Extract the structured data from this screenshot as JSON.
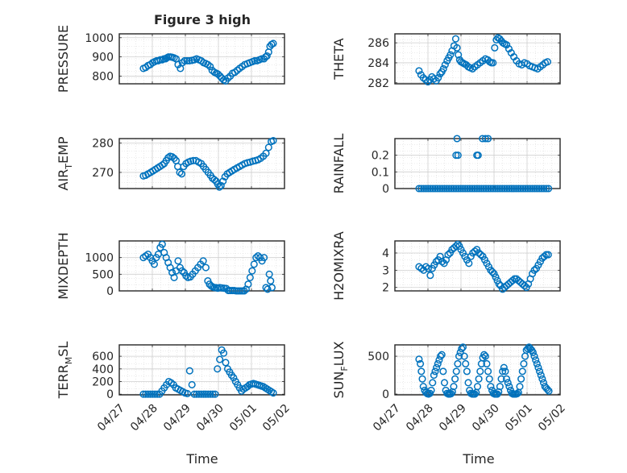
{
  "figure": {
    "title": "Figure 3 high",
    "xlabel": "Time",
    "xticks": [
      "04/27",
      "04/28",
      "04/29",
      "04/30",
      "05/01",
      "05/02"
    ]
  },
  "style": {
    "marker_color": "#0072BD",
    "axis_color": "#262626",
    "grid_color": "#d9d9d9"
  },
  "chart_data": [
    {
      "type": "scatter",
      "ylabel": "PRESSURE",
      "ylim": [
        760,
        1020
      ],
      "yticks": [
        800,
        900,
        1000
      ],
      "x": [
        27.73,
        27.8,
        27.87,
        27.94,
        28.01,
        28.07,
        28.13,
        28.18,
        28.24,
        28.3,
        28.35,
        28.4,
        28.44,
        28.49,
        28.55,
        28.6,
        28.66,
        28.72,
        28.78,
        28.85,
        28.91,
        28.98,
        29.05,
        29.12,
        29.2,
        29.27,
        29.34,
        29.41,
        29.48,
        29.55,
        29.62,
        29.68,
        29.75,
        29.81,
        29.88,
        29.94,
        29.99,
        30.05,
        30.1,
        30.16,
        30.22,
        30.29,
        30.36,
        30.43,
        30.5,
        30.57,
        30.64,
        30.72,
        30.8,
        30.88,
        30.95,
        31.03,
        31.1,
        31.17,
        31.24,
        31.31,
        31.38,
        31.43,
        31.47,
        31.52,
        31.56,
        31.61,
        31.66
      ],
      "y": [
        840,
        845,
        855,
        860,
        870,
        875,
        880,
        880,
        885,
        885,
        890,
        890,
        895,
        900,
        900,
        898,
        895,
        890,
        860,
        840,
        870,
        880,
        880,
        880,
        882,
        885,
        890,
        885,
        880,
        870,
        865,
        860,
        850,
        830,
        820,
        815,
        810,
        800,
        790,
        780,
        775,
        790,
        800,
        815,
        820,
        830,
        840,
        850,
        860,
        865,
        870,
        875,
        880,
        880,
        885,
        890,
        890,
        900,
        905,
        925,
        955,
        965,
        970
      ]
    },
    {
      "type": "scatter",
      "ylabel": "THETA",
      "ylim": [
        281.9,
        286.9
      ],
      "yticks": [
        282,
        284,
        286
      ],
      "x": [
        27.73,
        27.79,
        27.86,
        27.93,
        28.0,
        28.06,
        28.12,
        28.18,
        28.25,
        28.31,
        28.37,
        28.42,
        28.47,
        28.52,
        28.58,
        28.63,
        28.68,
        28.73,
        28.79,
        28.84,
        28.88,
        28.92,
        28.96,
        29.0,
        29.05,
        29.1,
        29.16,
        29.22,
        29.28,
        29.35,
        29.42,
        29.5,
        29.58,
        29.66,
        29.74,
        29.81,
        29.87,
        29.92,
        29.97,
        30.02,
        30.07,
        30.12,
        30.17,
        30.22,
        30.27,
        30.32,
        30.38,
        30.45,
        30.52,
        30.6,
        30.68,
        30.76,
        30.84,
        30.92,
        31.0,
        31.08,
        31.16,
        31.24,
        31.32,
        31.4,
        31.48,
        31.55,
        31.62
      ],
      "y": [
        283.2,
        282.8,
        282.5,
        282.3,
        282.1,
        282.3,
        282.6,
        282.4,
        282.2,
        282.5,
        282.9,
        283.1,
        283.4,
        283.8,
        284.2,
        284.5,
        284.8,
        285.2,
        285.7,
        286.4,
        285.5,
        284.8,
        284.3,
        284.1,
        284.0,
        283.9,
        283.8,
        283.6,
        283.5,
        283.4,
        283.6,
        283.8,
        284.0,
        284.2,
        284.4,
        284.3,
        284.1,
        284.0,
        284.0,
        285.5,
        286.3,
        286.5,
        286.4,
        286.2,
        286.0,
        285.9,
        285.8,
        285.4,
        285.0,
        284.6,
        284.2,
        283.9,
        283.8,
        284.0,
        283.9,
        283.7,
        283.6,
        283.5,
        283.4,
        283.6,
        283.8,
        284.0,
        284.1
      ]
    },
    {
      "type": "scatter",
      "ylabel": "AIR_TEMP",
      "ylim": [
        264.5,
        281.5
      ],
      "yticks": [
        270,
        280
      ],
      "x": [
        27.73,
        27.8,
        27.87,
        27.95,
        28.02,
        28.09,
        28.16,
        28.23,
        28.3,
        28.36,
        28.42,
        28.48,
        28.54,
        28.6,
        28.66,
        28.72,
        28.77,
        28.83,
        28.89,
        28.95,
        29.02,
        29.09,
        29.16,
        29.24,
        29.32,
        29.4,
        29.48,
        29.55,
        29.62,
        29.69,
        29.76,
        29.82,
        29.88,
        29.93,
        29.98,
        30.03,
        30.08,
        30.14,
        30.2,
        30.27,
        30.34,
        30.41,
        30.48,
        30.56,
        30.64,
        30.72,
        30.8,
        30.88,
        30.96,
        31.04,
        31.12,
        31.2,
        31.28,
        31.36,
        31.44,
        31.52,
        31.6,
        31.66
      ],
      "y": [
        268.8,
        269.0,
        269.5,
        270.0,
        270.5,
        271.0,
        271.5,
        272.0,
        272.5,
        273.0,
        274.0,
        275.0,
        275.5,
        275.3,
        274.8,
        274.0,
        272.0,
        270.0,
        269.5,
        272.0,
        273.0,
        273.5,
        273.8,
        274.0,
        274.0,
        273.5,
        273.0,
        272.0,
        271.0,
        270.0,
        269.0,
        268.0,
        267.5,
        267.0,
        266.0,
        265.0,
        265.5,
        267.0,
        268.5,
        269.5,
        270.0,
        270.5,
        271.0,
        271.5,
        272.0,
        272.5,
        273.0,
        273.3,
        273.5,
        273.8,
        274.0,
        274.3,
        274.8,
        275.5,
        276.5,
        278.5,
        280.5,
        280.8
      ]
    },
    {
      "type": "scatter",
      "ylabel": "RAINFALL",
      "ylim": [
        0,
        0.3
      ],
      "yticks": [
        0,
        0.1,
        0.2
      ],
      "x": [
        27.73,
        27.8,
        27.87,
        27.94,
        28.01,
        28.08,
        28.15,
        28.22,
        28.29,
        28.36,
        28.43,
        28.5,
        28.57,
        28.64,
        28.71,
        28.78,
        28.85,
        28.92,
        28.99,
        29.06,
        29.13,
        29.2,
        29.27,
        29.34,
        29.41,
        29.48,
        29.55,
        29.62,
        29.69,
        29.76,
        29.83,
        29.9,
        29.97,
        30.04,
        30.11,
        30.18,
        30.25,
        30.32,
        30.39,
        30.46,
        30.53,
        30.6,
        30.67,
        30.74,
        30.81,
        30.88,
        30.95,
        31.02,
        31.09,
        31.16,
        31.23,
        31.3,
        31.37,
        31.44,
        31.51,
        31.58,
        31.65,
        28.85,
        28.88,
        28.91,
        29.48,
        29.52,
        29.65,
        29.74,
        29.82
      ],
      "y": [
        0,
        0,
        0,
        0,
        0,
        0,
        0,
        0,
        0,
        0,
        0,
        0,
        0,
        0,
        0,
        0,
        0,
        0,
        0,
        0,
        0,
        0,
        0,
        0,
        0,
        0,
        0,
        0,
        0,
        0,
        0,
        0,
        0,
        0,
        0,
        0,
        0,
        0,
        0,
        0,
        0,
        0,
        0,
        0,
        0,
        0,
        0,
        0,
        0,
        0,
        0,
        0,
        0,
        0,
        0,
        0,
        0,
        0.2,
        0.3,
        0.2,
        0.2,
        0.2,
        0.3,
        0.3,
        0.3
      ]
    },
    {
      "type": "scatter",
      "ylabel": "MIXDEPTH",
      "ylim": [
        0,
        1500
      ],
      "yticks": [
        0,
        500,
        1000
      ],
      "x": [
        27.73,
        27.8,
        27.87,
        27.94,
        28.0,
        28.06,
        28.12,
        28.18,
        28.24,
        28.3,
        28.36,
        28.42,
        28.48,
        28.54,
        28.6,
        28.66,
        28.72,
        28.78,
        28.84,
        28.9,
        28.96,
        29.02,
        29.08,
        29.15,
        29.22,
        29.3,
        29.38,
        29.46,
        29.54,
        29.62,
        29.68,
        29.73,
        29.78,
        29.83,
        29.88,
        29.93,
        29.98,
        30.04,
        30.1,
        30.17,
        30.24,
        30.3,
        30.36,
        30.42,
        30.48,
        30.54,
        30.6,
        30.66,
        30.72,
        30.78,
        30.84,
        30.9,
        30.96,
        31.02,
        31.08,
        31.14,
        31.2,
        31.26,
        31.32,
        31.38,
        31.44,
        31.49,
        31.54,
        31.58,
        31.62
      ],
      "y": [
        1000,
        1050,
        1100,
        1000,
        900,
        800,
        1000,
        1100,
        1300,
        1400,
        1150,
        1000,
        850,
        700,
        550,
        400,
        600,
        900,
        700,
        600,
        550,
        450,
        400,
        420,
        500,
        600,
        700,
        800,
        900,
        700,
        300,
        200,
        150,
        120,
        100,
        100,
        80,
        100,
        90,
        80,
        70,
        10,
        10,
        10,
        10,
        0,
        0,
        0,
        0,
        0,
        50,
        200,
        400,
        600,
        800,
        1000,
        1050,
        1000,
        900,
        1000,
        100,
        50,
        500,
        300,
        100
      ]
    },
    {
      "type": "scatter",
      "ylabel": "H2OMIXRA",
      "ylim": [
        1.8,
        4.7
      ],
      "yticks": [
        2,
        3,
        4
      ],
      "x": [
        27.73,
        27.8,
        27.87,
        27.94,
        28.01,
        28.07,
        28.13,
        28.19,
        28.25,
        28.31,
        28.37,
        28.43,
        28.49,
        28.55,
        28.61,
        28.67,
        28.73,
        28.79,
        28.85,
        28.9,
        28.95,
        29.0,
        29.06,
        29.12,
        29.18,
        29.24,
        29.3,
        29.36,
        29.42,
        29.48,
        29.54,
        29.6,
        29.66,
        29.72,
        29.78,
        29.84,
        29.9,
        29.95,
        30.0,
        30.05,
        30.1,
        30.15,
        30.2,
        30.26,
        30.32,
        30.38,
        30.44,
        30.5,
        30.56,
        30.62,
        30.68,
        30.74,
        30.8,
        30.86,
        30.92,
        30.98,
        31.04,
        31.1,
        31.16,
        31.22,
        31.28,
        31.34,
        31.4,
        31.46,
        31.52,
        31.58,
        31.64
      ],
      "y": [
        3.2,
        3.1,
        3.0,
        3.2,
        3.1,
        2.7,
        3.1,
        3.3,
        3.5,
        3.6,
        3.8,
        3.5,
        3.4,
        3.6,
        3.9,
        4.0,
        4.2,
        4.3,
        4.4,
        4.5,
        4.4,
        4.2,
        4.0,
        3.8,
        3.6,
        3.4,
        3.8,
        4.0,
        4.1,
        4.2,
        4.0,
        3.9,
        3.8,
        3.6,
        3.4,
        3.2,
        3.0,
        2.9,
        2.8,
        2.6,
        2.4,
        2.2,
        2.1,
        1.9,
        2.0,
        2.1,
        2.2,
        2.3,
        2.4,
        2.5,
        2.5,
        2.4,
        2.3,
        2.2,
        2.1,
        2.0,
        2.2,
        2.5,
        2.8,
        3.0,
        3.1,
        3.3,
        3.5,
        3.7,
        3.8,
        3.9,
        3.9
      ]
    },
    {
      "type": "scatter",
      "ylabel": "TERR_MSL",
      "ylim": [
        -10,
        780
      ],
      "yticks": [
        0,
        200,
        400,
        600
      ],
      "x": [
        27.73,
        27.8,
        27.87,
        27.94,
        28.01,
        28.08,
        28.15,
        28.22,
        28.29,
        28.36,
        28.43,
        28.5,
        28.57,
        28.64,
        28.71,
        28.78,
        28.85,
        28.92,
        28.99,
        29.06,
        29.13,
        29.2,
        29.27,
        29.34,
        29.41,
        29.48,
        29.55,
        29.62,
        29.69,
        29.76,
        29.83,
        29.9,
        29.97,
        30.04,
        30.1,
        30.16,
        30.22,
        30.28,
        30.34,
        30.4,
        30.46,
        30.52,
        30.58,
        30.64,
        30.7,
        30.76,
        30.82,
        30.88,
        30.94,
        31.0,
        31.06,
        31.12,
        31.18,
        31.24,
        31.3,
        31.36,
        31.42,
        31.48,
        31.54,
        31.6,
        31.66
      ],
      "y": [
        0,
        0,
        0,
        0,
        0,
        0,
        0,
        0,
        50,
        100,
        150,
        200,
        180,
        150,
        100,
        80,
        60,
        40,
        20,
        10,
        370,
        150,
        0,
        0,
        0,
        0,
        0,
        0,
        0,
        0,
        0,
        0,
        400,
        550,
        700,
        650,
        500,
        400,
        350,
        300,
        260,
        200,
        150,
        100,
        50,
        80,
        100,
        120,
        150,
        160,
        170,
        160,
        150,
        140,
        130,
        120,
        100,
        80,
        60,
        40,
        20
      ]
    },
    {
      "type": "scatter",
      "ylabel": "SUN_FLUX",
      "ylim": [
        -10,
        650
      ],
      "yticks": [
        0,
        500
      ],
      "x": [
        27.73,
        27.77,
        27.8,
        27.83,
        27.86,
        27.9,
        27.94,
        27.98,
        28.02,
        28.06,
        28.1,
        28.14,
        28.18,
        28.22,
        28.26,
        28.3,
        28.34,
        28.38,
        28.42,
        28.46,
        28.5,
        28.54,
        28.58,
        28.62,
        28.66,
        28.7,
        28.74,
        28.78,
        28.82,
        28.86,
        28.9,
        28.94,
        28.98,
        29.02,
        29.06,
        29.1,
        29.14,
        29.18,
        29.22,
        29.26,
        29.3,
        29.34,
        29.38,
        29.42,
        29.46,
        29.5,
        29.54,
        29.58,
        29.62,
        29.66,
        29.7,
        29.74,
        29.78,
        29.82,
        29.86,
        29.9,
        29.94,
        29.98,
        30.02,
        30.06,
        30.1,
        30.14,
        30.18,
        30.22,
        30.26,
        30.3,
        30.34,
        30.38,
        30.42,
        30.46,
        30.5,
        30.54,
        30.58,
        30.62,
        30.66,
        30.7,
        30.74,
        30.78,
        30.82,
        30.86,
        30.9,
        30.94,
        30.98,
        31.02,
        31.06,
        31.1,
        31.14,
        31.18,
        31.22,
        31.26,
        31.3,
        31.34,
        31.38,
        31.42,
        31.46,
        31.5,
        31.54,
        31.58,
        31.62,
        31.66
      ],
      "y": [
        460,
        400,
        300,
        200,
        100,
        50,
        20,
        5,
        0,
        10,
        50,
        150,
        250,
        300,
        350,
        400,
        450,
        500,
        520,
        300,
        150,
        50,
        10,
        0,
        0,
        5,
        30,
        100,
        200,
        300,
        400,
        500,
        550,
        600,
        620,
        500,
        400,
        300,
        150,
        50,
        10,
        0,
        0,
        0,
        20,
        100,
        200,
        300,
        400,
        480,
        520,
        500,
        400,
        300,
        200,
        100,
        50,
        10,
        0,
        0,
        0,
        30,
        100,
        200,
        300,
        350,
        300,
        200,
        150,
        100,
        50,
        10,
        0,
        0,
        0,
        5,
        20,
        100,
        200,
        300,
        400,
        500,
        580,
        600,
        620,
        600,
        580,
        550,
        500,
        450,
        400,
        350,
        300,
        250,
        200,
        150,
        100,
        80,
        60,
        40
      ]
    }
  ]
}
